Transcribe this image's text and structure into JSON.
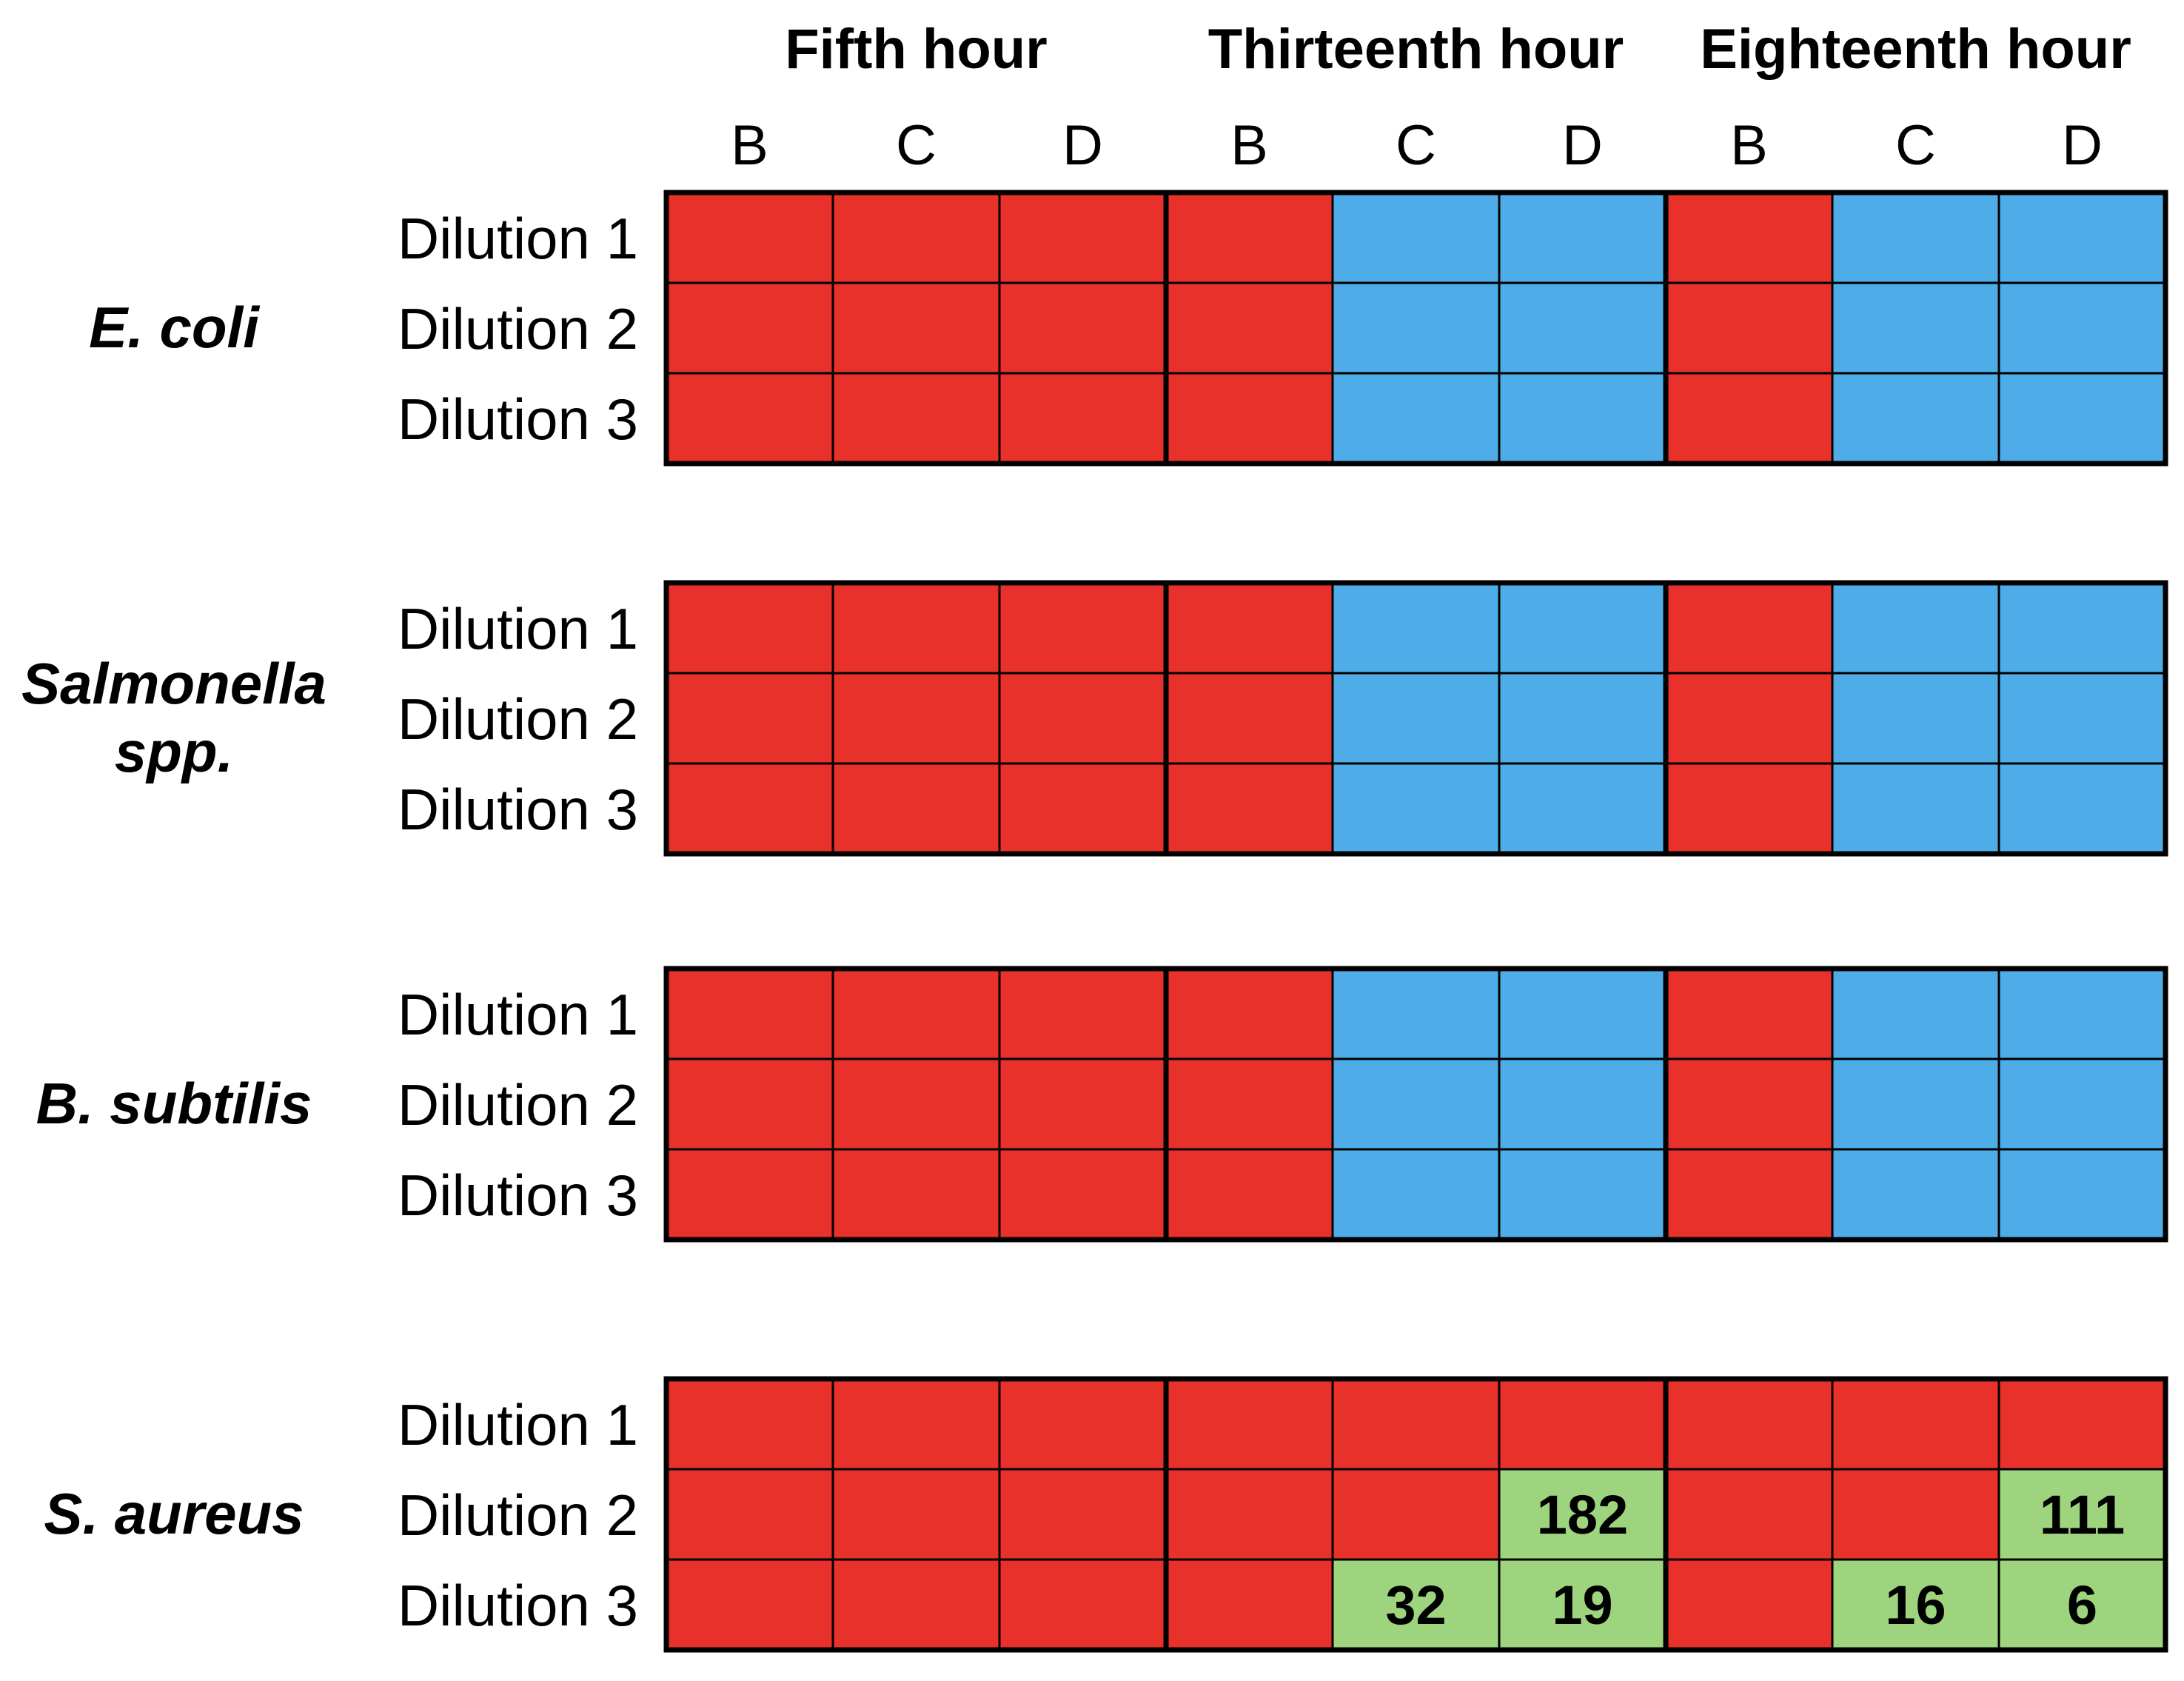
{
  "chart_data": {
    "type": "heatmap",
    "time_points": [
      "Fifth hour",
      "Thirteenth hour",
      "Eighteenth hour"
    ],
    "columns": [
      "B",
      "C",
      "D"
    ],
    "rows": [
      "Dilution 1",
      "Dilution 2",
      "Dilution 3"
    ],
    "colors": {
      "red": "#e8312a",
      "blue": "#4eade8",
      "green": "#9ed47d",
      "grid": "#000000"
    },
    "panels": [
      {
        "organism": "E. coli",
        "organism_lines": [
          {
            "text": "E. coli",
            "italic": true
          }
        ],
        "cells": [
          [
            "red",
            "red",
            "red",
            "red",
            "blue",
            "blue",
            "red",
            "blue",
            "blue"
          ],
          [
            "red",
            "red",
            "red",
            "red",
            "blue",
            "blue",
            "red",
            "blue",
            "blue"
          ],
          [
            "red",
            "red",
            "red",
            "red",
            "blue",
            "blue",
            "red",
            "blue",
            "blue"
          ]
        ],
        "values": [
          [
            "",
            "",
            "",
            "",
            "",
            "",
            "",
            "",
            ""
          ],
          [
            "",
            "",
            "",
            "",
            "",
            "",
            "",
            "",
            ""
          ],
          [
            "",
            "",
            "",
            "",
            "",
            "",
            "",
            "",
            ""
          ]
        ]
      },
      {
        "organism": "Salmonella spp.",
        "organism_lines": [
          {
            "text": "Salmonella",
            "italic": true
          },
          {
            "text": "spp.",
            "italic": false
          }
        ],
        "cells": [
          [
            "red",
            "red",
            "red",
            "red",
            "blue",
            "blue",
            "red",
            "blue",
            "blue"
          ],
          [
            "red",
            "red",
            "red",
            "red",
            "blue",
            "blue",
            "red",
            "blue",
            "blue"
          ],
          [
            "red",
            "red",
            "red",
            "red",
            "blue",
            "blue",
            "red",
            "blue",
            "blue"
          ]
        ],
        "values": [
          [
            "",
            "",
            "",
            "",
            "",
            "",
            "",
            "",
            ""
          ],
          [
            "",
            "",
            "",
            "",
            "",
            "",
            "",
            "",
            ""
          ],
          [
            "",
            "",
            "",
            "",
            "",
            "",
            "",
            "",
            ""
          ]
        ]
      },
      {
        "organism": "B. subtilis",
        "organism_lines": [
          {
            "text": "B. subtilis",
            "italic": true
          }
        ],
        "cells": [
          [
            "red",
            "red",
            "red",
            "red",
            "blue",
            "blue",
            "red",
            "blue",
            "blue"
          ],
          [
            "red",
            "red",
            "red",
            "red",
            "blue",
            "blue",
            "red",
            "blue",
            "blue"
          ],
          [
            "red",
            "red",
            "red",
            "red",
            "blue",
            "blue",
            "red",
            "blue",
            "blue"
          ]
        ],
        "values": [
          [
            "",
            "",
            "",
            "",
            "",
            "",
            "",
            "",
            ""
          ],
          [
            "",
            "",
            "",
            "",
            "",
            "",
            "",
            "",
            ""
          ],
          [
            "",
            "",
            "",
            "",
            "",
            "",
            "",
            "",
            ""
          ]
        ]
      },
      {
        "organism": "S. aureus",
        "organism_lines": [
          {
            "text": "S. aureus",
            "italic": true
          }
        ],
        "cells": [
          [
            "red",
            "red",
            "red",
            "red",
            "red",
            "red",
            "red",
            "red",
            "red"
          ],
          [
            "red",
            "red",
            "red",
            "red",
            "red",
            "green",
            "red",
            "red",
            "green"
          ],
          [
            "red",
            "red",
            "red",
            "red",
            "green",
            "green",
            "red",
            "green",
            "green"
          ]
        ],
        "values": [
          [
            "",
            "",
            "",
            "",
            "",
            "",
            "",
            "",
            ""
          ],
          [
            "",
            "",
            "",
            "",
            "",
            "182",
            "",
            "",
            "111"
          ],
          [
            "",
            "",
            "",
            "",
            "32",
            "19",
            "",
            "16",
            "6"
          ]
        ]
      }
    ]
  }
}
